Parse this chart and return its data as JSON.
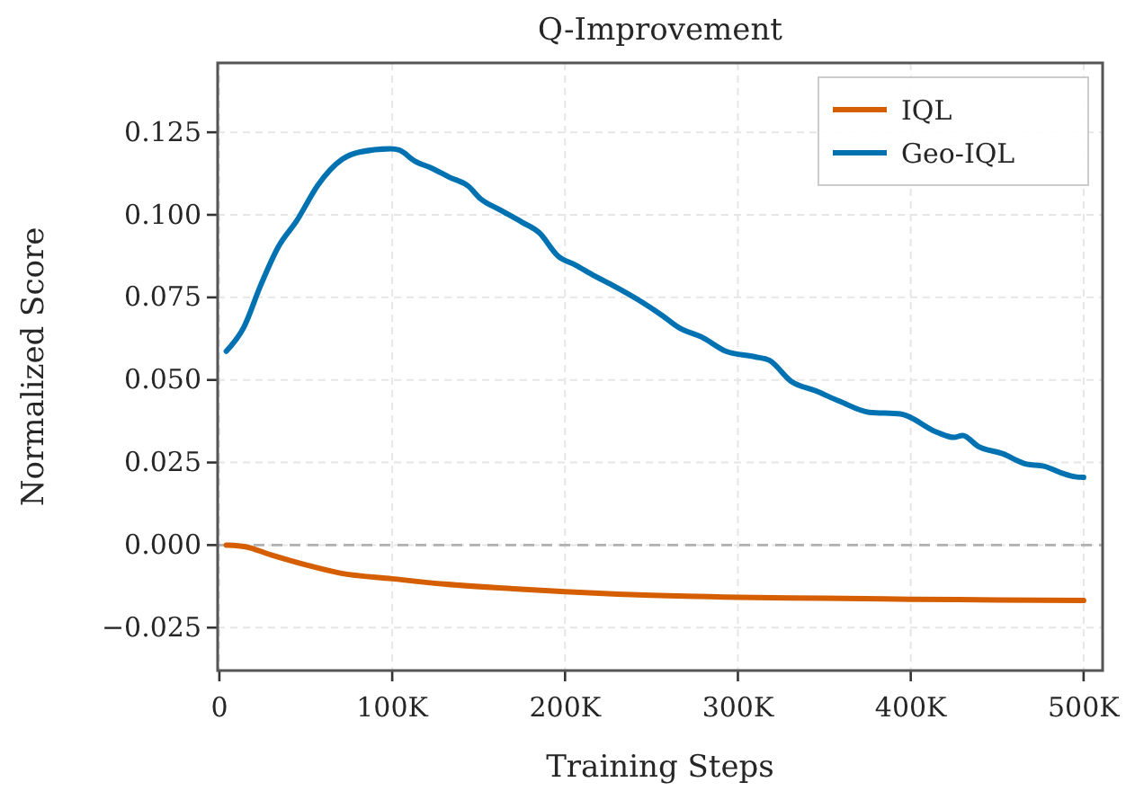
{
  "chart_data": {
    "type": "line",
    "title": "Q-Improvement",
    "xlabel": "Training Steps",
    "ylabel": "Normalized Score",
    "xlim": [
      -1000,
      511000
    ],
    "ylim": [
      -0.038,
      0.146
    ],
    "xticks": [
      0,
      {
        "value": 100000,
        "label": "100K"
      },
      {
        "value": 200000,
        "label": "200K"
      },
      {
        "value": 300000,
        "label": "300K"
      },
      {
        "value": 400000,
        "label": "400K"
      },
      {
        "value": 500000,
        "label": "500K"
      }
    ],
    "yticks": [
      {
        "value": -0.025,
        "label": "−0.025"
      },
      {
        "value": 0,
        "label": "0.000"
      },
      {
        "value": 0.025,
        "label": "0.025"
      },
      {
        "value": 0.05,
        "label": "0.050"
      },
      {
        "value": 0.075,
        "label": "0.075"
      },
      {
        "value": 0.1,
        "label": "0.100"
      },
      {
        "value": 0.125,
        "label": "0.125"
      }
    ],
    "grid": true,
    "legend": "top right",
    "line_style": "solid",
    "ref_lines": [
      {
        "axis": "y",
        "value": 0,
        "color": "#b0b0b0",
        "line_style": "dashed"
      }
    ],
    "series": [
      {
        "name": "IQL",
        "color": "#d55e00",
        "x": [
          4000,
          15000,
          30000,
          50000,
          70000,
          100000,
          130000,
          170000,
          200000,
          250000,
          300000,
          350000,
          400000,
          450000,
          500000
        ],
        "values": [
          0.0,
          -0.0005,
          -0.003,
          -0.006,
          -0.0085,
          -0.0102,
          -0.0118,
          -0.0132,
          -0.0141,
          -0.0152,
          -0.0158,
          -0.0161,
          -0.0164,
          -0.0166,
          -0.0168
        ]
      },
      {
        "name": "Geo-IQL",
        "color": "#0072b2",
        "x": [
          4000,
          14000,
          24000,
          34000,
          45000,
          57000,
          71000,
          81000,
          99000,
          104000,
          113000,
          123000,
          133000,
          144000,
          151000,
          162000,
          175000,
          185000,
          196000,
          206000,
          217000,
          227000,
          245000,
          256000,
          266000,
          279000,
          293000,
          310000,
          318000,
          331000,
          345000,
          359000,
          376000,
          394000,
          415000,
          425000,
          430000,
          439000,
          453000,
          467000,
          477000,
          488000,
          495000,
          500000
        ],
        "values": [
          0.0587,
          0.0658,
          0.0788,
          0.0902,
          0.0984,
          0.109,
          0.1168,
          0.119,
          0.12,
          0.1196,
          0.1163,
          0.1141,
          0.1114,
          0.1087,
          0.1049,
          0.1016,
          0.0978,
          0.0946,
          0.0875,
          0.0848,
          0.0815,
          0.0788,
          0.0734,
          0.0696,
          0.0658,
          0.063,
          0.0587,
          0.057,
          0.056,
          0.0495,
          0.0467,
          0.0435,
          0.0402,
          0.0397,
          0.0342,
          0.0326,
          0.0332,
          0.0299,
          0.0277,
          0.0245,
          0.0239,
          0.0217,
          0.0207,
          0.0205
        ]
      }
    ]
  }
}
